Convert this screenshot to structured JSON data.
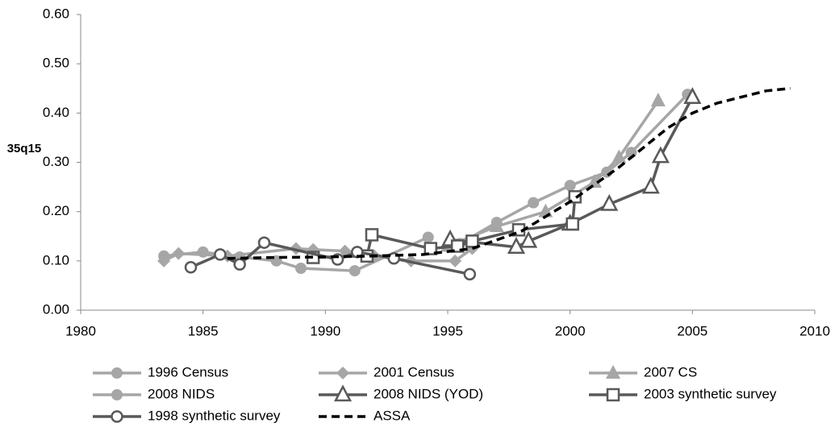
{
  "chart_data": {
    "type": "line",
    "ylabel": "35q15",
    "xlim": [
      1980,
      2010
    ],
    "xticks": [
      1980,
      1985,
      1990,
      1995,
      2000,
      2005,
      2010
    ],
    "ylim": [
      0,
      0.6
    ],
    "yticks": [
      {
        "value": 0,
        "label": "0.00"
      },
      {
        "value": 0.1,
        "label": "0.10"
      },
      {
        "value": 0.2,
        "label": "0.20"
      },
      {
        "value": 0.3,
        "label": "0.30"
      },
      {
        "value": 0.4,
        "label": "0.40"
      },
      {
        "value": 0.5,
        "label": "0.50"
      },
      {
        "value": 0.6,
        "label": "0.60"
      }
    ],
    "series": [
      {
        "name": "1996 Census",
        "color": "#a6a6a6",
        "marker": "circle",
        "x": [
          1983.4,
          1985.0,
          1986.5,
          1988.0,
          1989.0,
          1991.2,
          1994.2
        ],
        "values": [
          0.11,
          0.118,
          0.108,
          0.1,
          0.085,
          0.08,
          0.148
        ]
      },
      {
        "name": "2001 Census",
        "color": "#a6a6a6",
        "marker": "diamond",
        "x": [
          1983.4,
          1984.0,
          1986.0,
          1988.8,
          1989.5,
          1990.8,
          1992.0,
          1993.5,
          1995.3,
          1996.0
        ],
        "values": [
          0.1,
          0.115,
          0.11,
          0.125,
          0.123,
          0.12,
          0.11,
          0.1,
          0.1,
          0.125
        ]
      },
      {
        "name": "2007 CS",
        "color": "#a6a6a6",
        "marker": "triangle",
        "x": [
          1995.0,
          1997.0,
          1999.0,
          2001.0,
          2002.0,
          2003.6
        ],
        "values": [
          0.13,
          0.17,
          0.2,
          0.26,
          0.31,
          0.425
        ]
      },
      {
        "name": "2008 NIDS",
        "color": "#a6a6a6",
        "marker": "circle",
        "x": [
          1995.5,
          1997.0,
          1998.5,
          2000.0,
          2001.5,
          2002.5,
          2004.8
        ],
        "values": [
          0.135,
          0.178,
          0.218,
          0.253,
          0.28,
          0.32,
          0.438
        ]
      },
      {
        "name": "2008 NIDS (YOD)",
        "color": "#595959",
        "marker": "triangle-open",
        "x": [
          1995.1,
          1997.8,
          1998.3,
          2000.0,
          2001.6,
          2003.3,
          2003.7,
          2005.0
        ],
        "values": [
          0.143,
          0.128,
          0.14,
          0.175,
          0.215,
          0.25,
          0.312,
          0.432
        ]
      },
      {
        "name": "2003 synthetic survey",
        "color": "#595959",
        "marker": "square-open",
        "x": [
          1989.5,
          1991.7,
          1991.9,
          1994.3,
          1995.4,
          1996.0,
          1997.9,
          2000.1,
          2000.2
        ],
        "values": [
          0.107,
          0.11,
          0.153,
          0.125,
          0.13,
          0.14,
          0.163,
          0.175,
          0.23
        ]
      },
      {
        "name": "1998 synthetic survey",
        "color": "#595959",
        "marker": "circle-open",
        "x": [
          1984.5,
          1985.7,
          1986.5,
          1987.5,
          1990.5,
          1991.3,
          1992.8,
          1995.9
        ],
        "values": [
          0.087,
          0.113,
          0.093,
          0.137,
          0.103,
          0.118,
          0.105,
          0.073
        ]
      },
      {
        "name": "ASSA",
        "color": "#000000",
        "marker": "none",
        "dashed": true,
        "x": [
          1986,
          1988,
          1990,
          1992,
          1994,
          1996,
          1998,
          2000,
          2002,
          2004,
          2005,
          2006,
          2008,
          2009
        ],
        "values": [
          0.105,
          0.107,
          0.108,
          0.11,
          0.113,
          0.125,
          0.16,
          0.22,
          0.29,
          0.37,
          0.4,
          0.42,
          0.445,
          0.45
        ]
      }
    ]
  }
}
